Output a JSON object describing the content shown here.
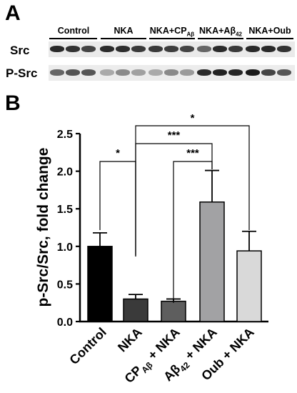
{
  "panel_a": {
    "letter": "A",
    "lanes": [
      "Control",
      "NKA",
      "NKA+CP",
      "NKA+A",
      "NKA+Oub"
    ],
    "lane_subscripts": [
      "",
      "",
      "Aβ",
      "β",
      ""
    ],
    "lane_subscript2": [
      "",
      "",
      "",
      "42",
      ""
    ],
    "rows": [
      "Src",
      "P-Src"
    ]
  },
  "panel_b": {
    "letter": "B"
  },
  "chart_data": {
    "type": "bar",
    "categories": [
      "Control",
      "NKA",
      "CP",
      "Aβ",
      "Oub + NKA"
    ],
    "category_suffix": [
      "",
      "",
      " + NKA",
      " + NKA",
      ""
    ],
    "category_subscripts": [
      "",
      "",
      "Aβ",
      "42",
      ""
    ],
    "values": [
      1.0,
      0.3,
      0.27,
      1.59,
      0.94
    ],
    "errors": [
      0.18,
      0.06,
      0.03,
      0.42,
      0.26
    ],
    "bar_colors": [
      "#000000",
      "#3a3a3a",
      "#5e5e5e",
      "#a2a2a4",
      "#d9d9d9"
    ],
    "ylabel": "p-Src/Src, fold change",
    "ylim": [
      0,
      2.5
    ],
    "yticks": [
      "0.0",
      "0.5",
      "1.0",
      "1.5",
      "2.0",
      "2.5"
    ],
    "significance": [
      {
        "from": 0,
        "to": 1,
        "label": "*"
      },
      {
        "from": 2,
        "to": 3,
        "label": "***"
      },
      {
        "from": 1,
        "to": 3,
        "label": "***"
      },
      {
        "from": 1,
        "to": 4,
        "label": "*"
      }
    ]
  }
}
